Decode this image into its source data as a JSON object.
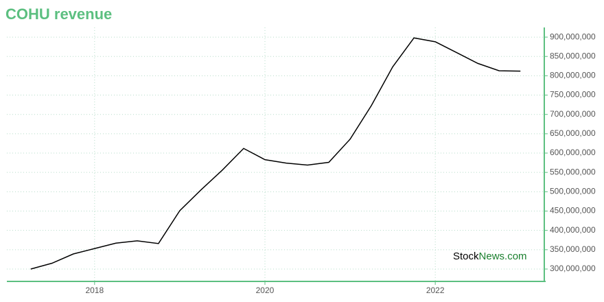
{
  "chart_data": {
    "type": "line",
    "title": "COHU revenue",
    "x": [
      2017.25,
      2017.5,
      2017.75,
      2018.0,
      2018.25,
      2018.5,
      2018.75,
      2019.0,
      2019.25,
      2019.5,
      2019.75,
      2020.0,
      2020.25,
      2020.5,
      2020.75,
      2021.0,
      2021.25,
      2021.5,
      2021.75,
      2022.0,
      2022.25,
      2022.5,
      2022.75,
      2023.0
    ],
    "series": [
      {
        "name": "Revenue",
        "color": "#000000",
        "values": [
          300000000,
          315000000,
          339000000,
          353000000,
          367000000,
          373000000,
          366000000,
          451000000,
          505000000,
          556000000,
          612000000,
          583000000,
          574000000,
          569000000,
          576000000,
          636000000,
          723000000,
          823000000,
          898000000,
          888000000,
          860000000,
          832000000,
          813000000,
          812000000
        ]
      }
    ],
    "xlim": [
      2016.97,
      2023.28
    ],
    "xticks": [
      2018,
      2020,
      2022
    ],
    "ylim": [
      268000000,
      925000000
    ],
    "yticks": [
      {
        "value": 300000000,
        "label": "300,000,000"
      },
      {
        "value": 350000000,
        "label": "350,000,000"
      },
      {
        "value": 400000000,
        "label": "400,000,000"
      },
      {
        "value": 450000000,
        "label": "450,000,000"
      },
      {
        "value": 500000000,
        "label": "500,000,000"
      },
      {
        "value": 550000000,
        "label": "550,000,000"
      },
      {
        "value": 600000000,
        "label": "600,000,000"
      },
      {
        "value": 650000000,
        "label": "650,000,000"
      },
      {
        "value": 700000000,
        "label": "700,000,000"
      },
      {
        "value": 750000000,
        "label": "750,000,000"
      },
      {
        "value": 800000000,
        "label": "800,000,000"
      },
      {
        "value": 850000000,
        "label": "850,000,000"
      },
      {
        "value": 900000000,
        "label": "900,000,000"
      }
    ],
    "grid": true,
    "axis_color": "#5cbf80",
    "watermark": [
      "Stock",
      "News.com"
    ]
  }
}
